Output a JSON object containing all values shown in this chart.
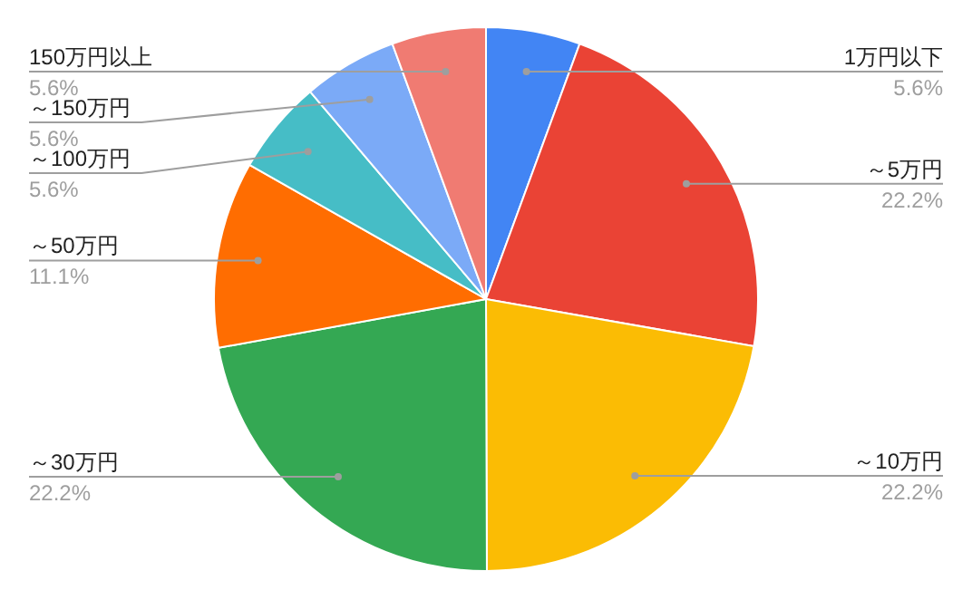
{
  "chart_data": {
    "type": "pie",
    "categories": [
      "1万円以下",
      "～5万円",
      "～10万円",
      "～30万円",
      "～50万円",
      "～100万円",
      "～150万円",
      "150万円以上"
    ],
    "values": [
      5.6,
      22.2,
      22.2,
      22.2,
      11.1,
      5.6,
      5.6,
      5.6
    ],
    "colors": [
      "#4285f4",
      "#ea4335",
      "#fbbc04",
      "#34a853",
      "#ff6d01",
      "#46bdc6",
      "#7baaf7",
      "#f07b72"
    ],
    "value_labels": [
      "5.6%",
      "22.2%",
      "22.2%",
      "22.2%",
      "11.1%",
      "5.6%",
      "5.6%",
      "5.6%"
    ]
  }
}
